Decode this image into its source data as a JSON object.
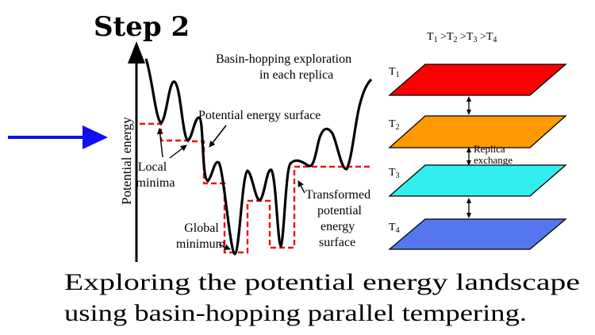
{
  "step_title": "Step 2",
  "y_axis_label": "Potential energy",
  "annotations": {
    "basin_hopping_line1": "Basin-hopping exploration",
    "basin_hopping_line2": "in each replica",
    "pes": "Potential energy surface",
    "local_minima_line1": "Local",
    "local_minima_line2": "minima",
    "global_minimum_line1": "Global",
    "global_minimum_line2": "minimum",
    "transformed_line1": "Transformed",
    "transformed_line2": "potential",
    "transformed_line3": "energy",
    "transformed_line4": "surface"
  },
  "temperature_order": {
    "t1": "T",
    "s1": "1",
    "g1": " >T",
    "s2": "2",
    "g2": " >T",
    "s3": "3",
    "g3": " >T",
    "s4": "4"
  },
  "replicas": [
    {
      "label": "T",
      "sub": "1",
      "color": "#ff0000"
    },
    {
      "label": "T",
      "sub": "2",
      "color": "#ff9900"
    },
    {
      "label": "T",
      "sub": "3",
      "color": "#33eeee"
    },
    {
      "label": "T",
      "sub": "4",
      "color": "#5577ee"
    }
  ],
  "replica_exchange_line1": "Replica",
  "replica_exchange_line2": "exchange",
  "caption_line1": "Exploring the potential energy landscape",
  "caption_line2": "using basin-hopping parallel tempering."
}
